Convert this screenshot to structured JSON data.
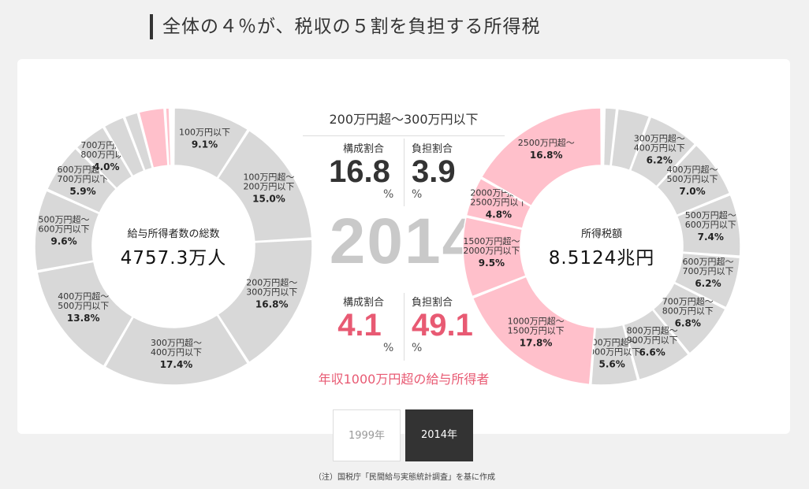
{
  "heading": "全体の４％が、税収の５割を負担する所得税",
  "year_watermark": "2014",
  "middle": {
    "title": "200万円超〜300万円以下",
    "stats_top": [
      {
        "label": "構成割合",
        "value": "16.8",
        "unit": "%"
      },
      {
        "label": "負担割合",
        "value": "3.9",
        "unit": "%"
      }
    ],
    "stats_bottom": [
      {
        "label": "構成割合",
        "value": "4.1",
        "unit": "%"
      },
      {
        "label": "負担割合",
        "value": "49.1",
        "unit": "%"
      }
    ],
    "footer": "年収1000万円超の給与所得者"
  },
  "tabs": [
    {
      "label": "1999年",
      "active": false
    },
    {
      "label": "2014年",
      "active": true
    }
  ],
  "note": "（注）国税庁「民間給与実態統計調査」を基に作成",
  "colors": {
    "gray": "#d8d8d8",
    "pink": "#ffc0cb",
    "accent": "#e85a73"
  },
  "chart_data": [
    {
      "type": "pie",
      "donut": true,
      "center_title": "給与所得者数の総数",
      "center_value": "4757.3万人",
      "categories": [
        "100万円以下",
        "100万円超〜200万円以下",
        "200万円超〜300万円以下",
        "300万円超〜400万円以下",
        "400万円超〜500万円以下",
        "500万円超〜600万円以下",
        "600万円超〜700万円以下",
        "700万円超〜800万円以下",
        "800万円超〜900万円以下",
        "900万円超〜1000万円以下",
        "1000万円超〜1500万円以下",
        "1500万円超〜2000万円以下",
        "2000万円超〜2500万円以下",
        "2500万円超"
      ],
      "values": [
        9.1,
        15.0,
        16.8,
        17.4,
        13.8,
        9.6,
        5.9,
        4.0,
        2.6,
        1.7,
        3.1,
        0.6,
        0.2,
        0.2
      ],
      "label_lines": [
        [
          "100万円以下"
        ],
        [
          "100万円超〜",
          "200万円以下"
        ],
        [
          "200万円超〜",
          "300万円以下"
        ],
        [
          "300万円超〜",
          "400万円以下"
        ],
        [
          "400万円超〜",
          "500万円以下"
        ],
        [
          "500万円超〜",
          "600万円以下"
        ],
        [
          "600万円超〜",
          "700万円以下"
        ],
        [
          "700万円超〜",
          "800万円以下"
        ],
        [],
        [],
        [],
        [],
        [],
        []
      ],
      "pct_labels": [
        "9.1%",
        "15.0%",
        "16.8%",
        "17.4%",
        "13.8%",
        "9.6%",
        "5.9%",
        "4.0%",
        "",
        "",
        "",
        "",
        "",
        ""
      ],
      "highlight": [
        false,
        false,
        false,
        false,
        false,
        false,
        false,
        false,
        false,
        false,
        true,
        true,
        true,
        true
      ]
    },
    {
      "type": "pie",
      "donut": true,
      "center_title": "所得税額",
      "center_value": "8.5124兆円",
      "categories": [
        "100万円以下",
        "100万円超〜200万円以下",
        "200万円超〜300万円以下",
        "300万円超〜400万円以下",
        "400万円超〜500万円以下",
        "500万円超〜600万円以下",
        "600万円超〜700万円以下",
        "700万円超〜800万円以下",
        "800万円超〜900万円以下",
        "900万円超〜1000万円以下",
        "1000万円超〜1500万円以下",
        "1500万円超〜2000万円以下",
        "2000万円超〜2500万円以下",
        "2500万円超"
      ],
      "values": [
        0.3,
        1.5,
        3.9,
        6.2,
        7.0,
        7.4,
        6.2,
        6.8,
        6.6,
        5.6,
        17.8,
        9.5,
        4.8,
        16.8
      ],
      "label_lines": [
        [],
        [],
        [],
        [
          "300万円超〜",
          "400万円以下"
        ],
        [
          "400万円超〜",
          "500万円以下"
        ],
        [
          "500万円超〜",
          "600万円以下"
        ],
        [
          "600万円超〜",
          "700万円以下"
        ],
        [
          "700万円超〜",
          "800万円以下"
        ],
        [
          "800万円超〜",
          "900万円以下"
        ],
        [
          "900万円超〜",
          "1000万円以下"
        ],
        [
          "1000万円超〜",
          "1500万円以下"
        ],
        [
          "1500万円超〜",
          "2000万円以下"
        ],
        [
          "2000万円超〜",
          "2500万円以下"
        ],
        [
          "2500万円超〜"
        ]
      ],
      "pct_labels": [
        "",
        "",
        "",
        "6.2%",
        "7.0%",
        "7.4%",
        "6.2%",
        "6.8%",
        "6.6%",
        "5.6%",
        "17.8%",
        "9.5%",
        "4.8%",
        "16.8%"
      ],
      "highlight": [
        false,
        false,
        false,
        false,
        false,
        false,
        false,
        false,
        false,
        false,
        true,
        true,
        true,
        true
      ]
    }
  ]
}
